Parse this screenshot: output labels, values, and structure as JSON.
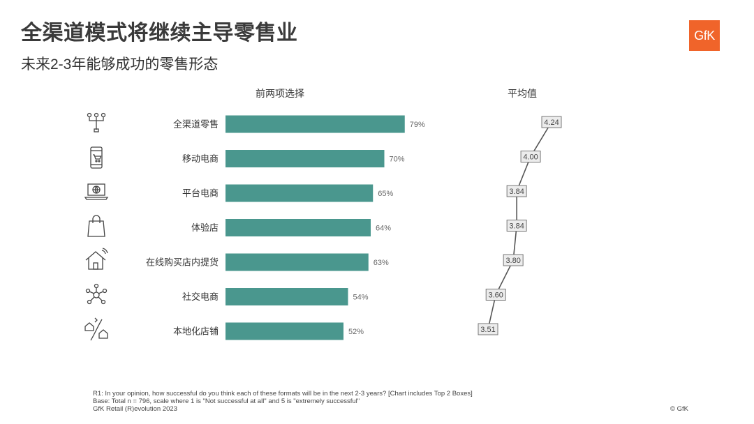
{
  "header": {
    "title": "全渠道模式将继续主导零售业",
    "subtitle": "未来2-3年能够成功的零售形态",
    "logo_text": "GfK"
  },
  "columns": {
    "left_label": "前两项选择",
    "right_label": "平均值"
  },
  "icons": [
    "network-icon",
    "mobile-cart-icon",
    "laptop-globe-icon",
    "shopping-bag-icon",
    "smart-home-icon",
    "social-network-icon",
    "local-store-icon"
  ],
  "colors": {
    "bar": "#4a978e",
    "logo": "#f0642a",
    "line": "#555555"
  },
  "chart_data": [
    {
      "type": "bar",
      "orientation": "horizontal",
      "title": "前两项选择",
      "categories": [
        "全渠道零售",
        "移动电商",
        "平台电商",
        "体验店",
        "在线购买店内提货",
        "社交电商",
        "本地化店铺"
      ],
      "values": [
        79,
        70,
        65,
        64,
        63,
        54,
        52
      ],
      "value_labels": [
        "79%",
        "70%",
        "65%",
        "64%",
        "63%",
        "54%",
        "52%"
      ],
      "unit": "%",
      "xlim": [
        0,
        100
      ]
    },
    {
      "type": "line",
      "title": "平均值",
      "categories": [
        "全渠道零售",
        "移动电商",
        "平台电商",
        "体验店",
        "在线购买店内提货",
        "社交电商",
        "本地化店铺"
      ],
      "values": [
        4.24,
        4.0,
        3.84,
        3.84,
        3.8,
        3.6,
        3.51
      ],
      "value_labels": [
        "4.24",
        "4.00",
        "3.84",
        "3.84",
        "3.80",
        "3.60",
        "3.51"
      ],
      "xlim": [
        3.4,
        4.3
      ]
    }
  ],
  "footnote": {
    "line1_main": "R1: In your opinion, how successful do you think each of these formats will be in the next 2-3 years?",
    "line1_note": "[Chart includes Top 2 Boxes]",
    "line2": "Base: Total n = 796, scale where 1 is  \"Not successful at all\"  and 5 is  \"extremely successful\"",
    "line3": "GfK Retail (R)evolution 2023",
    "copyright": "© GfK"
  }
}
